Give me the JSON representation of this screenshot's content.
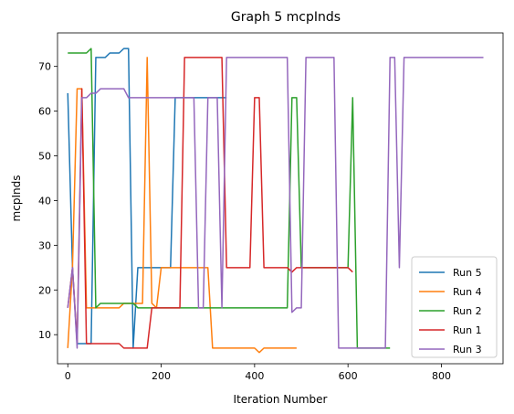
{
  "chart_data": {
    "type": "line",
    "title": "Graph 5 mcpInds",
    "xlabel": "Iteration Number",
    "ylabel": "mcpInds",
    "xlim": [
      -22,
      932
    ],
    "ylim": [
      3.5,
      77.5
    ],
    "xticks": [
      0,
      200,
      400,
      600,
      800
    ],
    "yticks": [
      10,
      20,
      30,
      40,
      50,
      60,
      70
    ],
    "grid": false,
    "legend_position": "lower-right",
    "series": [
      {
        "name": "Run 5",
        "color": "#1f77b4",
        "x": [
          0,
          10,
          20,
          30,
          40,
          50,
          60,
          70,
          80,
          90,
          100,
          110,
          120,
          130,
          140,
          150,
          160,
          170,
          180,
          190,
          200,
          210,
          220,
          230,
          240,
          250,
          260,
          270,
          280,
          290,
          300,
          310,
          320,
          330,
          340
        ],
        "y": [
          64,
          25,
          8,
          8,
          8,
          8,
          72,
          72,
          72,
          73,
          73,
          73,
          74,
          74,
          7,
          25,
          25,
          25,
          25,
          25,
          25,
          25,
          25,
          63,
          63,
          63,
          63,
          63,
          63,
          63,
          63,
          63,
          63,
          63,
          63
        ]
      },
      {
        "name": "Run 4",
        "color": "#ff7f0e",
        "x": [
          0,
          10,
          20,
          30,
          40,
          50,
          60,
          70,
          80,
          90,
          100,
          110,
          120,
          130,
          140,
          150,
          160,
          170,
          180,
          190,
          200,
          210,
          220,
          230,
          240,
          250,
          260,
          270,
          280,
          290,
          300,
          310,
          320,
          330,
          340,
          350,
          360,
          370,
          380,
          390,
          400,
          410,
          420,
          430,
          440,
          450,
          460,
          470,
          480,
          490
        ],
        "y": [
          7,
          25,
          65,
          65,
          16,
          16,
          16,
          16,
          16,
          16,
          16,
          16,
          17,
          17,
          17,
          17,
          17,
          72,
          17,
          16,
          25,
          25,
          25,
          25,
          25,
          25,
          25,
          25,
          25,
          25,
          25,
          7,
          7,
          7,
          7,
          7,
          7,
          7,
          7,
          7,
          7,
          6,
          7,
          7,
          7,
          7,
          7,
          7,
          7,
          7
        ]
      },
      {
        "name": "Run 2",
        "color": "#2ca02c",
        "x": [
          0,
          10,
          20,
          30,
          40,
          50,
          60,
          70,
          80,
          90,
          100,
          110,
          120,
          130,
          140,
          150,
          160,
          170,
          180,
          190,
          200,
          210,
          220,
          230,
          240,
          250,
          260,
          270,
          280,
          290,
          300,
          310,
          320,
          330,
          340,
          350,
          360,
          370,
          380,
          390,
          400,
          410,
          420,
          430,
          440,
          450,
          460,
          470,
          480,
          490,
          500,
          510,
          520,
          530,
          540,
          550,
          560,
          570,
          580,
          590,
          600,
          610,
          620,
          630,
          640,
          650,
          660,
          670,
          680,
          690
        ],
        "y": [
          73,
          73,
          73,
          73,
          73,
          74,
          16,
          17,
          17,
          17,
          17,
          17,
          17,
          17,
          17,
          16,
          16,
          16,
          16,
          16,
          16,
          16,
          16,
          16,
          16,
          16,
          16,
          16,
          16,
          16,
          16,
          16,
          16,
          16,
          16,
          16,
          16,
          16,
          16,
          16,
          16,
          16,
          16,
          16,
          16,
          16,
          16,
          16,
          63,
          63,
          25,
          25,
          25,
          25,
          25,
          25,
          25,
          25,
          25,
          25,
          25,
          63,
          7,
          7,
          7,
          7,
          7,
          7,
          7,
          7
        ]
      },
      {
        "name": "Run 1",
        "color": "#d62728",
        "x": [
          0,
          10,
          20,
          30,
          40,
          50,
          60,
          70,
          80,
          90,
          100,
          110,
          120,
          130,
          140,
          150,
          160,
          170,
          180,
          190,
          200,
          210,
          220,
          230,
          240,
          250,
          260,
          270,
          280,
          290,
          300,
          310,
          320,
          330,
          340,
          350,
          360,
          370,
          380,
          390,
          400,
          410,
          420,
          430,
          440,
          450,
          460,
          470,
          480,
          490,
          500,
          510,
          520,
          530,
          540,
          550,
          560,
          570,
          580,
          590,
          600,
          610
        ],
        "y": [
          16,
          25,
          8,
          65,
          8,
          8,
          8,
          8,
          8,
          8,
          8,
          8,
          7,
          7,
          7,
          7,
          7,
          7,
          16,
          16,
          16,
          16,
          16,
          16,
          16,
          72,
          72,
          72,
          72,
          72,
          72,
          72,
          72,
          72,
          25,
          25,
          25,
          25,
          25,
          25,
          63,
          63,
          25,
          25,
          25,
          25,
          25,
          25,
          24,
          25,
          25,
          25,
          25,
          25,
          25,
          25,
          25,
          25,
          25,
          25,
          25,
          24
        ]
      },
      {
        "name": "Run 3",
        "color": "#9467bd",
        "x": [
          0,
          10,
          20,
          30,
          40,
          50,
          60,
          70,
          80,
          90,
          100,
          110,
          120,
          130,
          140,
          150,
          160,
          170,
          180,
          190,
          200,
          210,
          220,
          230,
          240,
          250,
          260,
          270,
          280,
          290,
          300,
          310,
          320,
          330,
          340,
          350,
          360,
          370,
          380,
          390,
          400,
          410,
          420,
          430,
          440,
          450,
          460,
          470,
          480,
          490,
          500,
          510,
          520,
          530,
          540,
          550,
          560,
          570,
          580,
          590,
          600,
          610,
          620,
          630,
          640,
          650,
          660,
          670,
          680,
          690,
          700,
          710,
          720,
          730,
          740,
          750,
          760,
          770,
          780,
          790,
          800,
          810,
          820,
          830,
          840,
          850,
          860,
          870,
          880,
          890
        ],
        "y": [
          16,
          25,
          7,
          63,
          63,
          64,
          64,
          65,
          65,
          65,
          65,
          65,
          65,
          63,
          63,
          63,
          63,
          63,
          63,
          63,
          63,
          63,
          63,
          63,
          63,
          63,
          63,
          63,
          16,
          16,
          63,
          63,
          63,
          16,
          72,
          72,
          72,
          72,
          72,
          72,
          72,
          72,
          72,
          72,
          72,
          72,
          72,
          72,
          15,
          16,
          16,
          72,
          72,
          72,
          72,
          72,
          72,
          72,
          7,
          7,
          7,
          7,
          7,
          7,
          7,
          7,
          7,
          7,
          7,
          72,
          72,
          25,
          72,
          72,
          72,
          72,
          72,
          72,
          72,
          72,
          72,
          72,
          72,
          72,
          72,
          72,
          72,
          72,
          72,
          72
        ]
      }
    ]
  }
}
